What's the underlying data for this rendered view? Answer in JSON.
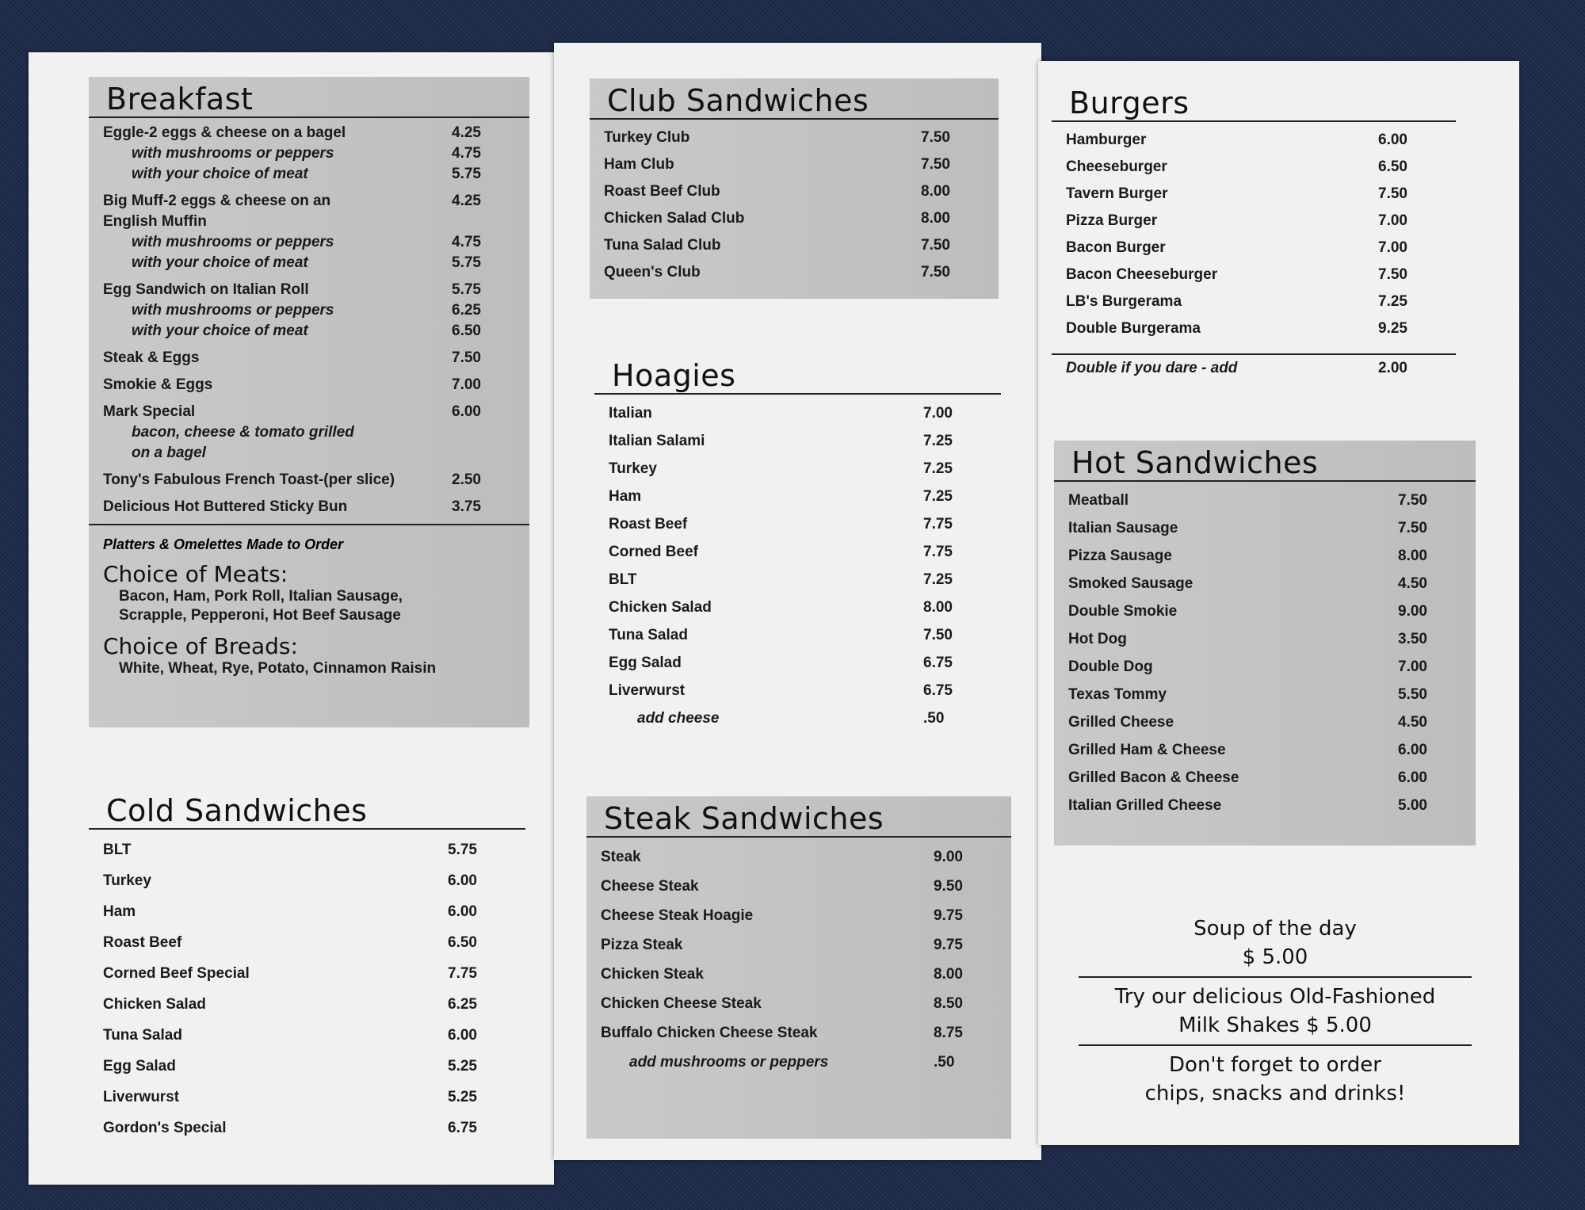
{
  "breakfast": {
    "title": "Breakfast",
    "items": [
      {
        "name": "Eggle-2 eggs & cheese on a bagel",
        "price": "4.25"
      },
      {
        "name": "with mushrooms or peppers",
        "price": "4.75",
        "sub": true
      },
      {
        "name": "with your choice of meat",
        "price": "5.75",
        "sub": true
      },
      {
        "name": "Big Muff-2 eggs & cheese on an",
        "price": "4.25",
        "gap": true
      },
      {
        "name": "English Muffin",
        "price": ""
      },
      {
        "name": "with mushrooms or peppers",
        "price": "4.75",
        "sub": true
      },
      {
        "name": "with your choice of meat",
        "price": "5.75",
        "sub": true
      },
      {
        "name": "Egg Sandwich on Italian Roll",
        "price": "5.75",
        "gap": true
      },
      {
        "name": "with mushrooms or peppers",
        "price": "6.25",
        "sub": true
      },
      {
        "name": "with your choice of meat",
        "price": "6.50",
        "sub": true
      },
      {
        "name": "Steak & Eggs",
        "price": "7.50",
        "gap": true
      },
      {
        "name": "Smokie & Eggs",
        "price": "7.00",
        "gap": true
      },
      {
        "name": "Mark Special",
        "price": "6.00",
        "gap": true
      },
      {
        "name": "bacon, cheese & tomato grilled",
        "price": "",
        "sub": true
      },
      {
        "name": "on a bagel",
        "price": "",
        "sub": true
      },
      {
        "name": "Tony's Fabulous French Toast-(per slice)",
        "price": "2.50",
        "gap": true
      },
      {
        "name": "Delicious Hot Buttered Sticky Bun",
        "price": "3.75",
        "gap": true
      }
    ],
    "note": "Platters & Omelettes Made to Order",
    "meats_title": "Choice of Meats:",
    "meats_lines": [
      "Bacon, Ham, Pork Roll, Italian Sausage,",
      "Scrapple, Pepperoni, Hot Beef Sausage"
    ],
    "breads_title": "Choice of Breads:",
    "breads_lines": [
      "White, Wheat, Rye, Potato, Cinnamon Raisin"
    ]
  },
  "cold": {
    "title": "Cold Sandwiches",
    "items": [
      {
        "name": "BLT",
        "price": "5.75"
      },
      {
        "name": "Turkey",
        "price": "6.00"
      },
      {
        "name": "Ham",
        "price": "6.00"
      },
      {
        "name": "Roast Beef",
        "price": "6.50"
      },
      {
        "name": "Corned Beef Special",
        "price": "7.75"
      },
      {
        "name": "Chicken Salad",
        "price": "6.25"
      },
      {
        "name": "Tuna Salad",
        "price": "6.00"
      },
      {
        "name": "Egg Salad",
        "price": "5.25"
      },
      {
        "name": "Liverwurst",
        "price": "5.25"
      },
      {
        "name": "Gordon's Special",
        "price": "6.75"
      }
    ]
  },
  "club": {
    "title": "Club Sandwiches",
    "items": [
      {
        "name": "Turkey Club",
        "price": "7.50"
      },
      {
        "name": "Ham Club",
        "price": "7.50"
      },
      {
        "name": "Roast Beef Club",
        "price": "8.00"
      },
      {
        "name": "Chicken Salad Club",
        "price": "8.00"
      },
      {
        "name": "Tuna Salad Club",
        "price": "7.50"
      },
      {
        "name": "Queen's Club",
        "price": "7.50"
      }
    ]
  },
  "hoagies": {
    "title": "Hoagies",
    "items": [
      {
        "name": "Italian",
        "price": "7.00"
      },
      {
        "name": "Italian Salami",
        "price": "7.25"
      },
      {
        "name": "Turkey",
        "price": "7.25"
      },
      {
        "name": "Ham",
        "price": "7.25"
      },
      {
        "name": "Roast Beef",
        "price": "7.75"
      },
      {
        "name": "Corned Beef",
        "price": "7.75"
      },
      {
        "name": "BLT",
        "price": "7.25"
      },
      {
        "name": "Chicken Salad",
        "price": "8.00"
      },
      {
        "name": "Tuna Salad",
        "price": "7.50"
      },
      {
        "name": "Egg Salad",
        "price": "6.75"
      },
      {
        "name": "Liverwurst",
        "price": "6.75"
      },
      {
        "name": "add cheese",
        "price": ".50",
        "sub": true
      }
    ]
  },
  "steak": {
    "title": "Steak Sandwiches",
    "items": [
      {
        "name": "Steak",
        "price": "9.00"
      },
      {
        "name": "Cheese Steak",
        "price": "9.50"
      },
      {
        "name": "Cheese Steak Hoagie",
        "price": "9.75"
      },
      {
        "name": "Pizza Steak",
        "price": "9.75"
      },
      {
        "name": "Chicken Steak",
        "price": "8.00"
      },
      {
        "name": "Chicken Cheese Steak",
        "price": "8.50"
      },
      {
        "name": "Buffalo Chicken Cheese Steak",
        "price": "8.75"
      },
      {
        "name": "add mushrooms or peppers",
        "price": ".50",
        "sub": true
      }
    ]
  },
  "burgers": {
    "title": "Burgers",
    "items": [
      {
        "name": "Hamburger",
        "price": "6.00"
      },
      {
        "name": "Cheeseburger",
        "price": "6.50"
      },
      {
        "name": "Tavern Burger",
        "price": "7.50"
      },
      {
        "name": "Pizza Burger",
        "price": "7.00"
      },
      {
        "name": "Bacon Burger",
        "price": "7.00"
      },
      {
        "name": "Bacon Cheeseburger",
        "price": "7.50"
      },
      {
        "name": "LB's Burgerama",
        "price": "7.25"
      },
      {
        "name": "Double Burgerama",
        "price": "9.25"
      }
    ],
    "extra": {
      "name": "Double if you dare - add",
      "price": "2.00"
    }
  },
  "hot": {
    "title": "Hot Sandwiches",
    "items": [
      {
        "name": "Meatball",
        "price": "7.50"
      },
      {
        "name": "Italian Sausage",
        "price": "7.50"
      },
      {
        "name": "Pizza Sausage",
        "price": "8.00"
      },
      {
        "name": "Smoked Sausage",
        "price": "4.50"
      },
      {
        "name": "Double Smokie",
        "price": "9.00"
      },
      {
        "name": "Hot Dog",
        "price": "3.50"
      },
      {
        "name": "Double Dog",
        "price": "7.00"
      },
      {
        "name": "Texas Tommy",
        "price": "5.50"
      },
      {
        "name": "Grilled Cheese",
        "price": "4.50"
      },
      {
        "name": "Grilled Ham & Cheese",
        "price": "6.00"
      },
      {
        "name": "Grilled Bacon & Cheese",
        "price": "6.00"
      },
      {
        "name": "Italian Grilled Cheese",
        "price": "5.00"
      }
    ]
  },
  "notes": {
    "soup": "Soup of the day",
    "soup_price": "$ 5.00",
    "shakes_1": "Try our delicious Old-Fashioned",
    "shakes_2": "Milk Shakes $ 5.00",
    "order_1": "Don't forget to order",
    "order_2": "chips, snacks and drinks!"
  }
}
